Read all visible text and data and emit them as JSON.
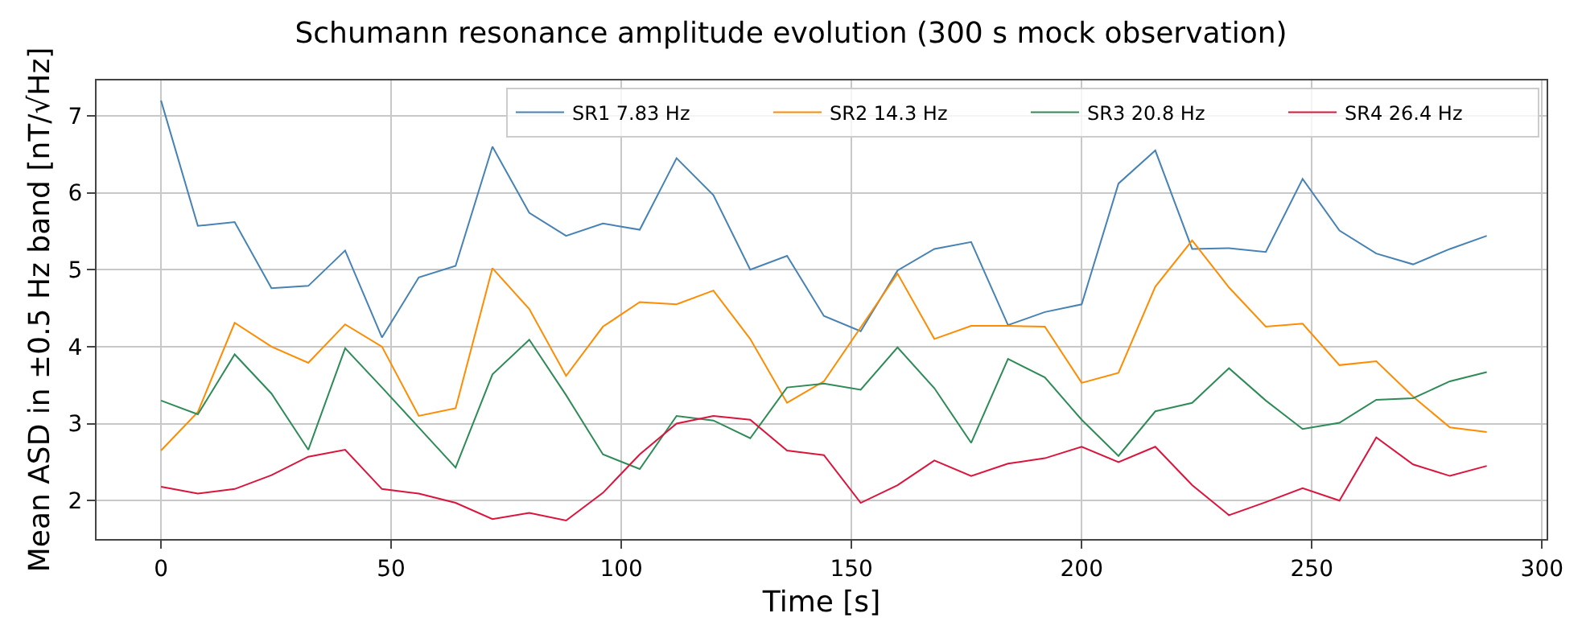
{
  "chart_data": {
    "type": "line",
    "title": "Schumann resonance amplitude evolution (300 s mock observation)",
    "xlabel": "Time [s]",
    "ylabel": "Mean ASD in ±0.5 Hz band [nT/√Hz]",
    "x": [
      0,
      8,
      16,
      24,
      32,
      40,
      48,
      56,
      64,
      72,
      80,
      88,
      96,
      104,
      112,
      120,
      128,
      136,
      144,
      152,
      160,
      168,
      176,
      184,
      192,
      200,
      208,
      216,
      224,
      232,
      240,
      248,
      256,
      264,
      272,
      280,
      288
    ],
    "series": [
      {
        "name": "SR1 7.83 Hz",
        "color": "#4682b4",
        "values": [
          7.2,
          5.57,
          5.62,
          4.76,
          4.79,
          5.25,
          4.12,
          4.9,
          5.05,
          6.6,
          5.74,
          5.44,
          5.6,
          5.52,
          6.45,
          5.97,
          5.0,
          5.18,
          4.4,
          4.2,
          4.99,
          5.27,
          5.36,
          4.28,
          4.45,
          4.55,
          6.12,
          6.55,
          5.27,
          5.28,
          5.23,
          6.18,
          5.51,
          5.21,
          5.07,
          5.27,
          5.44
        ]
      },
      {
        "name": "SR2 14.3 Hz",
        "color": "#ff8c00",
        "values": [
          2.65,
          3.15,
          4.31,
          4.0,
          3.79,
          4.29,
          4.0,
          3.1,
          3.2,
          5.02,
          4.49,
          3.62,
          4.26,
          4.58,
          4.55,
          4.73,
          4.1,
          3.27,
          3.55,
          4.25,
          4.95,
          4.1,
          4.27,
          4.27,
          4.26,
          3.53,
          3.66,
          4.78,
          5.38,
          4.77,
          4.26,
          4.3,
          3.76,
          3.81,
          3.35,
          2.95,
          2.89
        ]
      },
      {
        "name": "SR3 20.8 Hz",
        "color": "#2e8b57",
        "values": [
          3.3,
          3.12,
          3.9,
          3.39,
          2.66,
          3.98,
          3.47,
          2.95,
          2.43,
          3.64,
          4.09,
          3.37,
          2.6,
          2.41,
          3.1,
          3.04,
          2.81,
          3.47,
          3.52,
          3.44,
          3.99,
          3.46,
          2.75,
          3.84,
          3.6,
          3.05,
          2.58,
          3.16,
          3.27,
          3.72,
          3.3,
          2.93,
          3.01,
          3.31,
          3.33,
          3.55,
          3.67
        ]
      },
      {
        "name": "SR4 26.4 Hz",
        "color": "#dc143c",
        "values": [
          2.18,
          2.09,
          2.15,
          2.33,
          2.57,
          2.66,
          2.15,
          2.09,
          1.97,
          1.76,
          1.84,
          1.74,
          2.1,
          2.6,
          3.0,
          3.1,
          3.05,
          2.65,
          2.59,
          1.97,
          2.2,
          2.52,
          2.32,
          2.48,
          2.55,
          2.7,
          2.5,
          2.7,
          2.2,
          1.81,
          1.98,
          2.16,
          2.0,
          2.82,
          2.47,
          2.32,
          2.45
        ]
      }
    ],
    "xlim": [
      -14,
      301
    ],
    "xticks": [
      0,
      50,
      100,
      150,
      200,
      250,
      300
    ],
    "ylim": [
      1.5,
      7.46
    ],
    "yticks": [
      2,
      3,
      4,
      5,
      6,
      7
    ],
    "grid": true,
    "legend": "top right",
    "marker": "none",
    "line_style": "solid"
  }
}
